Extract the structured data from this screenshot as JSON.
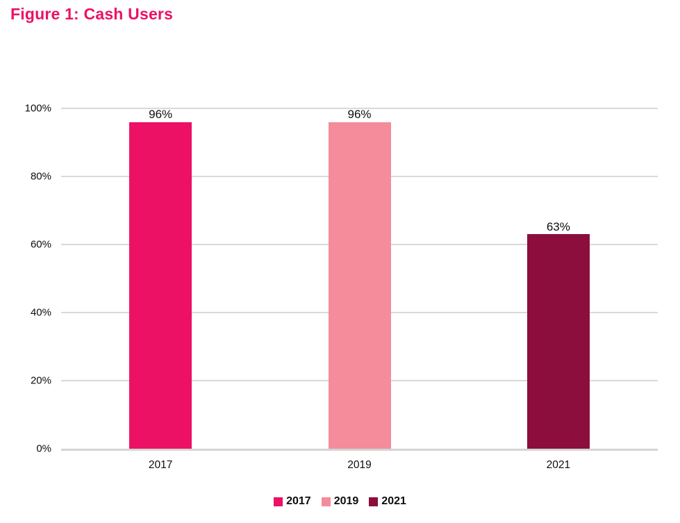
{
  "title": "Figure 1: Cash Users",
  "colors": {
    "title": "#EC1164",
    "gridline": "#D9D9D9",
    "axis_line": "#D4D4D4",
    "text": "#0D0D0D"
  },
  "chart_data": {
    "type": "bar",
    "title": "Figure 1: Cash Users",
    "categories": [
      "2017",
      "2019",
      "2021"
    ],
    "values": [
      96,
      96,
      63
    ],
    "value_labels": [
      "96%",
      "96%",
      "63%"
    ],
    "bar_colors": [
      "#EC1164",
      "#F48C9B",
      "#8B0E3C"
    ],
    "xlabel": "",
    "ylabel": "",
    "ylim": [
      0,
      100
    ],
    "yticks": [
      0,
      20,
      40,
      60,
      80,
      100
    ],
    "ytick_labels": [
      "0%",
      "20%",
      "40%",
      "60%",
      "80%",
      "100%"
    ],
    "grid": "horizontal",
    "legend": {
      "position": "bottom",
      "items": [
        {
          "label": "2017",
          "color": "#EC1164"
        },
        {
          "label": "2019",
          "color": "#F48C9B"
        },
        {
          "label": "2021",
          "color": "#8B0E3C"
        }
      ]
    }
  }
}
